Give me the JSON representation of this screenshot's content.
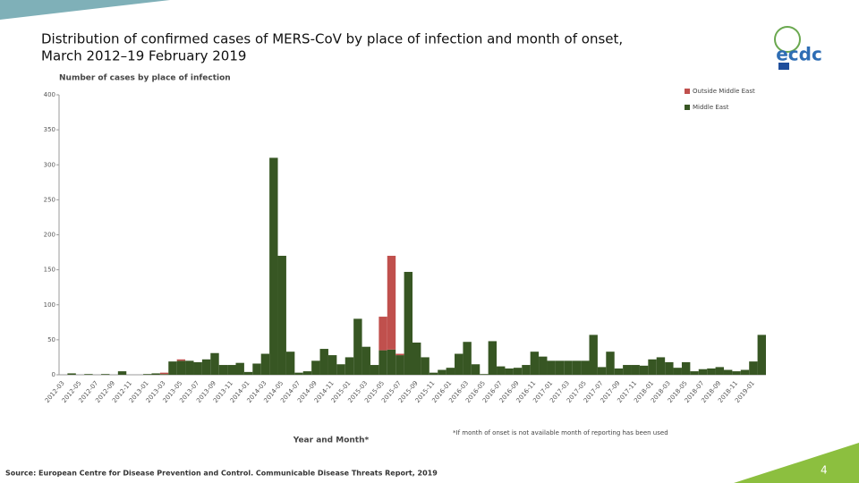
{
  "chart_data": {
    "type": "bar",
    "stacked": true,
    "title": [
      "Distribution of confirmed cases of MERS-CoV by place of infection and month of onset,",
      "March 2012–19 February 2019"
    ],
    "y_label": "Number of cases by place of infection",
    "x_label": "Year and Month*",
    "footnote": "*If month of onset is not available month of reporting has been used",
    "categories": [
      "2012-03",
      null,
      "2012-05",
      null,
      "2012-07",
      null,
      "2012-09",
      null,
      "2012-11",
      null,
      "2013-01",
      null,
      "2013-03",
      null,
      "2013-05",
      null,
      "2013-07",
      null,
      "2013-09",
      null,
      "2013-11",
      null,
      "2014-01",
      null,
      "2014-03",
      null,
      "2014-05",
      null,
      "2014-07",
      null,
      "2014-09",
      null,
      "2014-11",
      null,
      "2015-01",
      null,
      "2015-03",
      null,
      "2015-05",
      null,
      "2015-07",
      null,
      "2015-09",
      null,
      "2015-11",
      null,
      "2016-01",
      null,
      "2016-03",
      null,
      "2016-05",
      null,
      "2016-07",
      null,
      "2016-09",
      null,
      "2016-11",
      null,
      "2017-01",
      null,
      "2017-03",
      null,
      "2017-05",
      null,
      "2017-07",
      null,
      "2017-09",
      null,
      "2017-11",
      null,
      "2018-01",
      null,
      "2018-03",
      null,
      "2018-05",
      null,
      "2018-07",
      null,
      "2018-09",
      null,
      "2018-11",
      null,
      "2019-01",
      null
    ],
    "series": [
      {
        "name": "Outside Middle East",
        "color": "#c0504d",
        "values": [
          0,
          0,
          0,
          0,
          0,
          0,
          0,
          0,
          0,
          0,
          0,
          0,
          2,
          0,
          2,
          0,
          0,
          0,
          0,
          0,
          0,
          0,
          0,
          0,
          0,
          0,
          0,
          0,
          0,
          0,
          0,
          0,
          0,
          0,
          0,
          0,
          0,
          0,
          48,
          134,
          2,
          0,
          0,
          0,
          0,
          0,
          0,
          0,
          0,
          0,
          0,
          0,
          0,
          0,
          0,
          0,
          0,
          0,
          0,
          0,
          0,
          0,
          0,
          0,
          0,
          0,
          0,
          0,
          0,
          0,
          0,
          0,
          0,
          0,
          0,
          0,
          0,
          0,
          0,
          0,
          0,
          0,
          0,
          0
        ]
      },
      {
        "name": "Middle East",
        "color": "#375623",
        "values": [
          0,
          2,
          0,
          1,
          0,
          1,
          0,
          5,
          0,
          0,
          1,
          2,
          1,
          19,
          20,
          20,
          18,
          22,
          31,
          14,
          14,
          17,
          4,
          16,
          30,
          310,
          170,
          33,
          3,
          5,
          20,
          37,
          28,
          15,
          25,
          80,
          40,
          14,
          35,
          36,
          28,
          147,
          46,
          25,
          3,
          7,
          10,
          30,
          47,
          15,
          1,
          48,
          12,
          9,
          10,
          14,
          33,
          26,
          20,
          20,
          20,
          20,
          20,
          57,
          11,
          33,
          9,
          14,
          14,
          13,
          22,
          25,
          18,
          10,
          18,
          5,
          8,
          9,
          11,
          7,
          5,
          7,
          19,
          57
        ]
      }
    ],
    "ylim": [
      0,
      400
    ],
    "yticks": [
      0,
      50,
      100,
      150,
      200,
      250,
      300,
      350,
      400
    ],
    "grid": false
  },
  "footer": {
    "source": "Source: European Centre for Disease Prevention and Control. Communicable Disease Threats Report, 2019",
    "page": "4"
  },
  "logo": {
    "text": "ecdc"
  }
}
